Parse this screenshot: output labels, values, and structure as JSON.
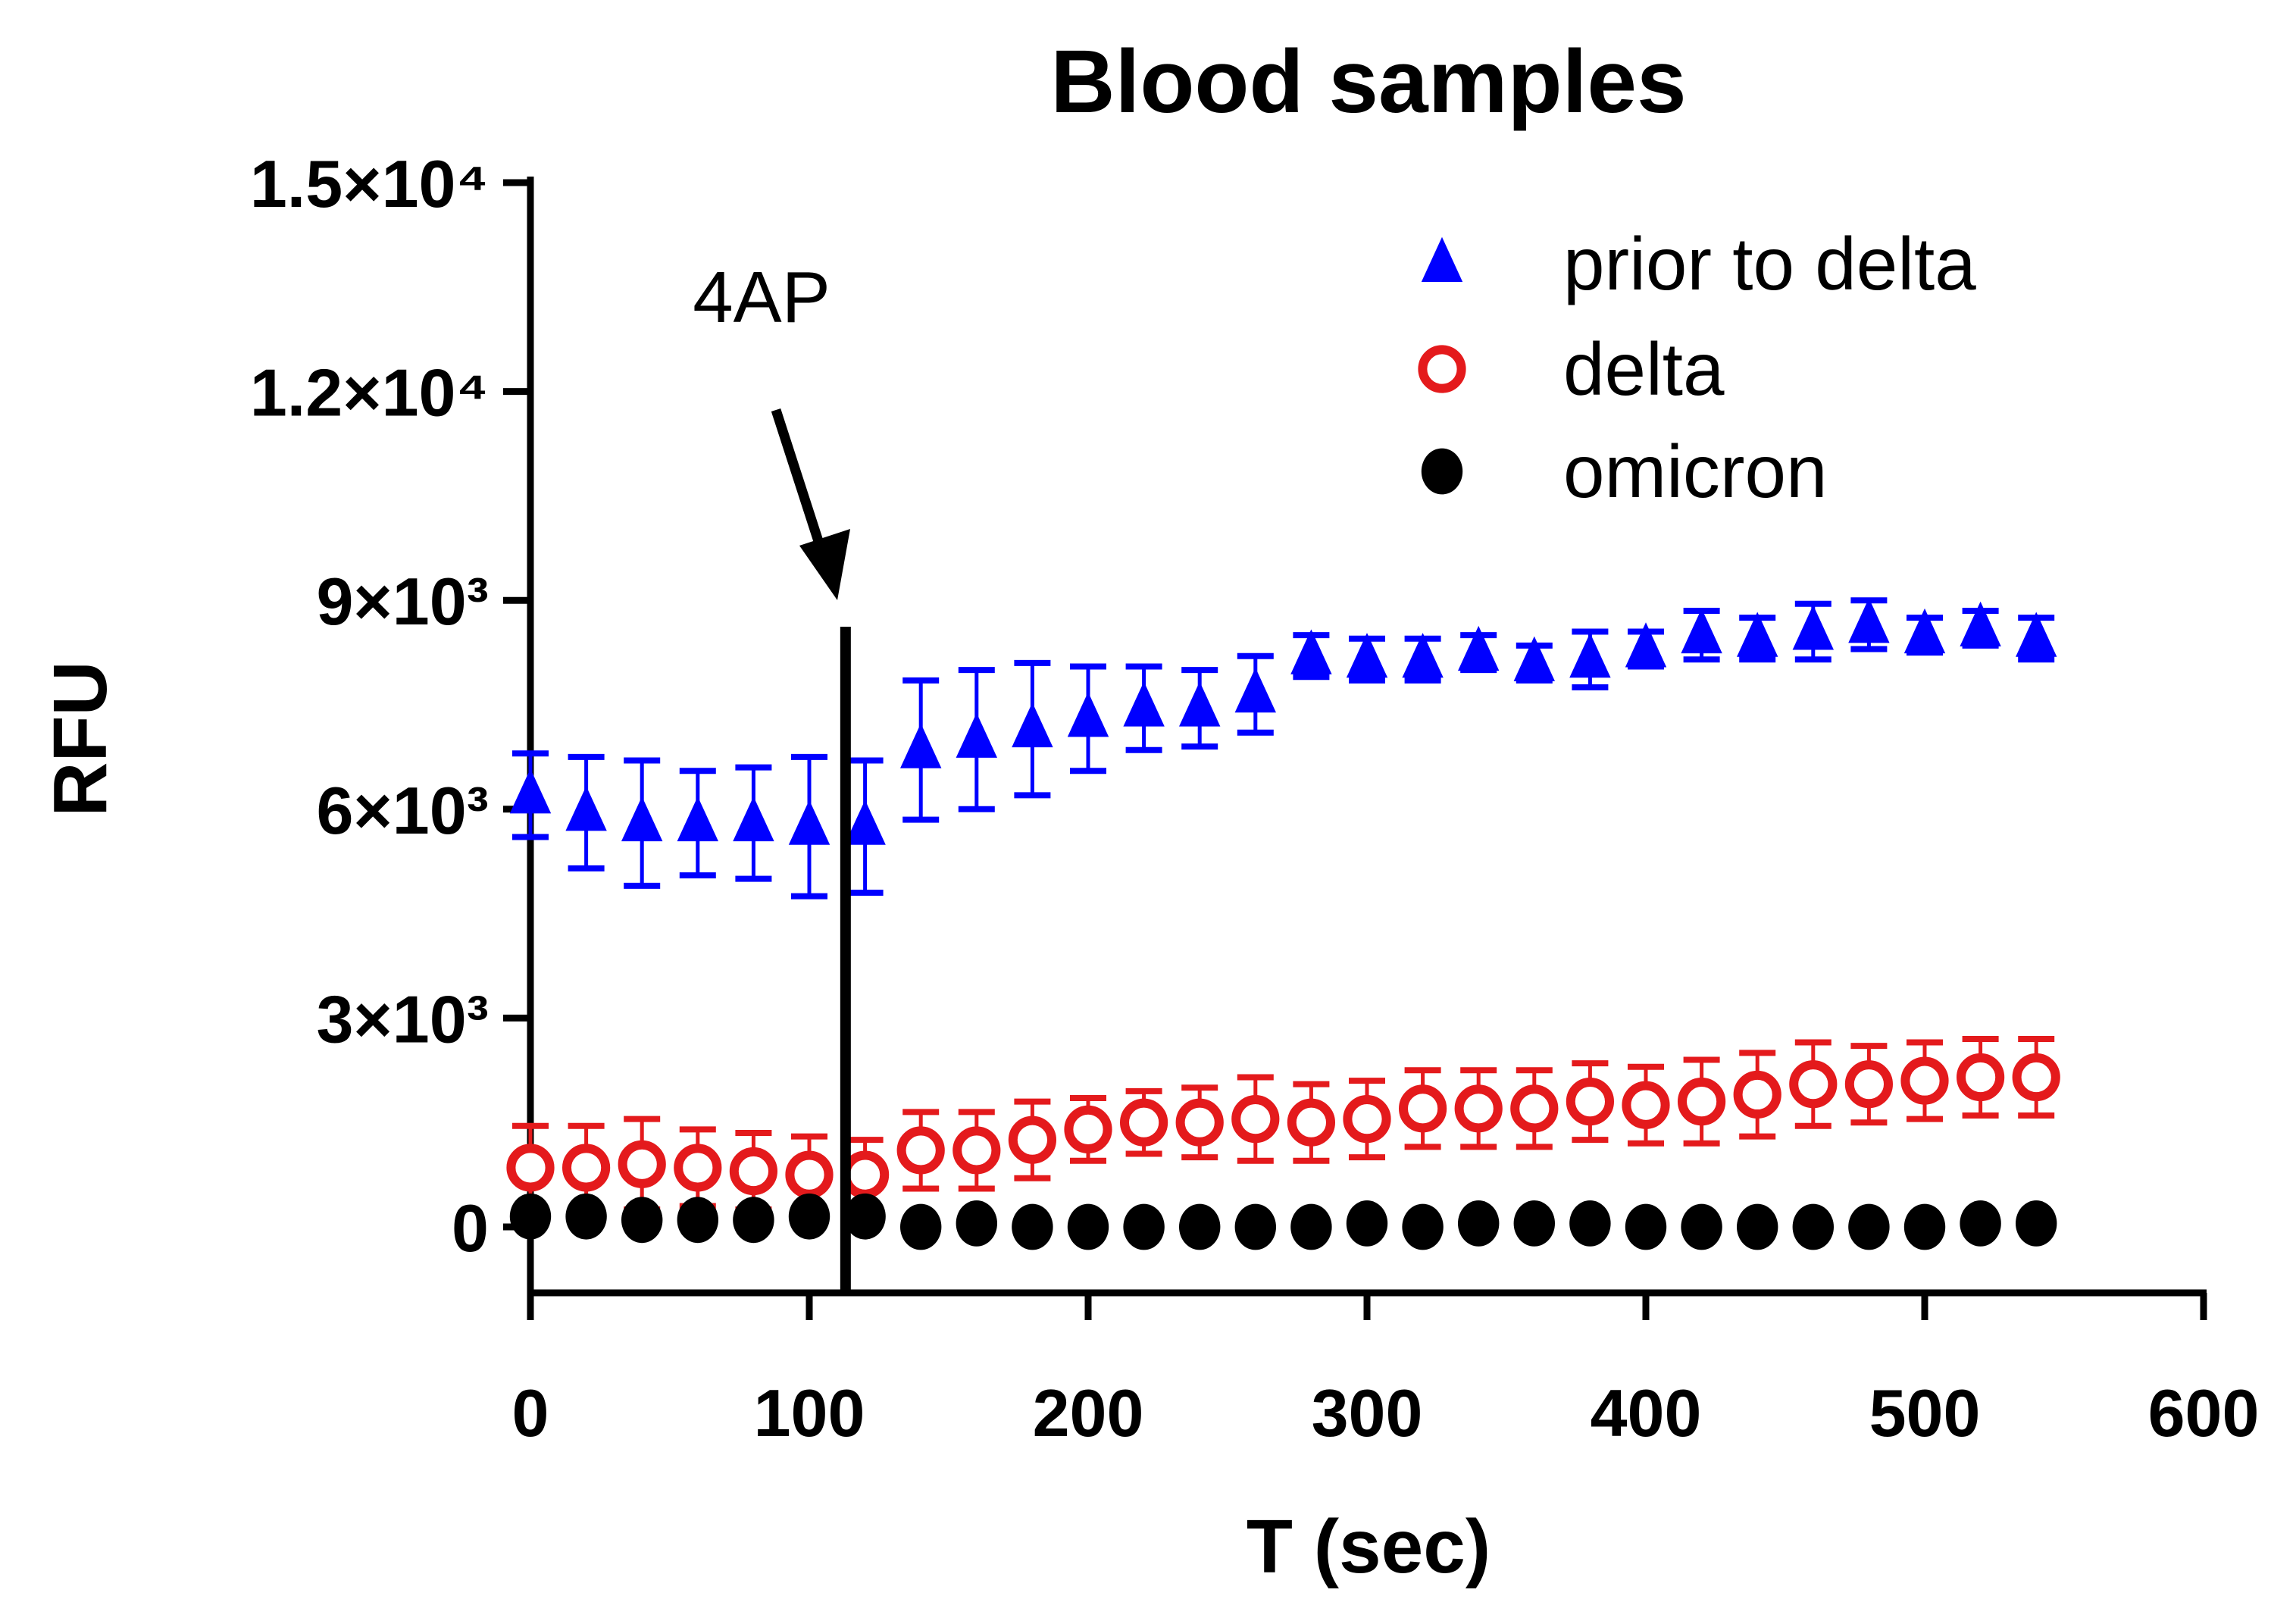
{
  "chart_data": {
    "type": "scatter",
    "title": "Blood samples",
    "xlabel": "T (sec)",
    "ylabel": "RFU",
    "xlim": [
      0,
      600
    ],
    "ylim": [
      0,
      15000
    ],
    "x_ticks": [
      0,
      100,
      200,
      300,
      400,
      500,
      600
    ],
    "x_tick_labels": [
      "0",
      "100",
      "200",
      "300",
      "400",
      "500",
      "600"
    ],
    "y_ticks": [
      0,
      3000,
      6000,
      9000,
      12000,
      15000
    ],
    "y_tick_labels": [
      "0",
      "3×10³",
      "6×10³",
      "9×10³",
      "1.2×10⁴",
      "1.5×10⁴"
    ],
    "grid": false,
    "legend_position": "top-right",
    "annotation": {
      "label": "4AP",
      "x": 113
    },
    "x": [
      0,
      20,
      40,
      60,
      80,
      100,
      120,
      140,
      160,
      180,
      200,
      220,
      240,
      260,
      280,
      300,
      320,
      340,
      360,
      380,
      400,
      420,
      440,
      460,
      480,
      500,
      520,
      540
    ],
    "series": [
      {
        "name": "prior to delta",
        "marker": "triangle",
        "color": "#0000ff",
        "values": [
          6200,
          5950,
          5800,
          5800,
          5800,
          5750,
          5750,
          6850,
          7000,
          7150,
          7300,
          7450,
          7450,
          7650,
          8200,
          8150,
          8150,
          8250,
          8100,
          8150,
          8300,
          8500,
          8450,
          8550,
          8650,
          8500,
          8600,
          8450
        ],
        "errors": [
          600,
          800,
          900,
          750,
          800,
          1000,
          950,
          1000,
          1000,
          950,
          750,
          600,
          550,
          550,
          300,
          300,
          300,
          250,
          250,
          400,
          250,
          350,
          300,
          400,
          350,
          250,
          250,
          300
        ]
      },
      {
        "name": "delta",
        "marker": "open-circle",
        "color": "#e41a1c",
        "values": [
          850,
          850,
          900,
          850,
          800,
          750,
          750,
          1100,
          1100,
          1250,
          1400,
          1500,
          1500,
          1550,
          1500,
          1550,
          1700,
          1700,
          1700,
          1800,
          1750,
          1800,
          1900,
          2050,
          2050,
          2100,
          2150,
          2150
        ],
        "errors": [
          600,
          600,
          650,
          550,
          550,
          550,
          500,
          550,
          550,
          550,
          450,
          450,
          500,
          600,
          550,
          550,
          550,
          550,
          550,
          550,
          550,
          600,
          600,
          600,
          550,
          550,
          550,
          550
        ]
      },
      {
        "name": "omicron",
        "marker": "filled-circle",
        "color": "#000000",
        "values": [
          150,
          150,
          100,
          100,
          100,
          150,
          150,
          0,
          50,
          0,
          0,
          0,
          0,
          0,
          0,
          50,
          0,
          50,
          50,
          50,
          0,
          0,
          0,
          0,
          0,
          0,
          50,
          50
        ],
        "errors": [
          0,
          0,
          0,
          0,
          0,
          0,
          0,
          0,
          0,
          0,
          0,
          0,
          0,
          0,
          0,
          0,
          0,
          0,
          0,
          0,
          0,
          0,
          0,
          0,
          0,
          0,
          0,
          0
        ]
      }
    ]
  }
}
